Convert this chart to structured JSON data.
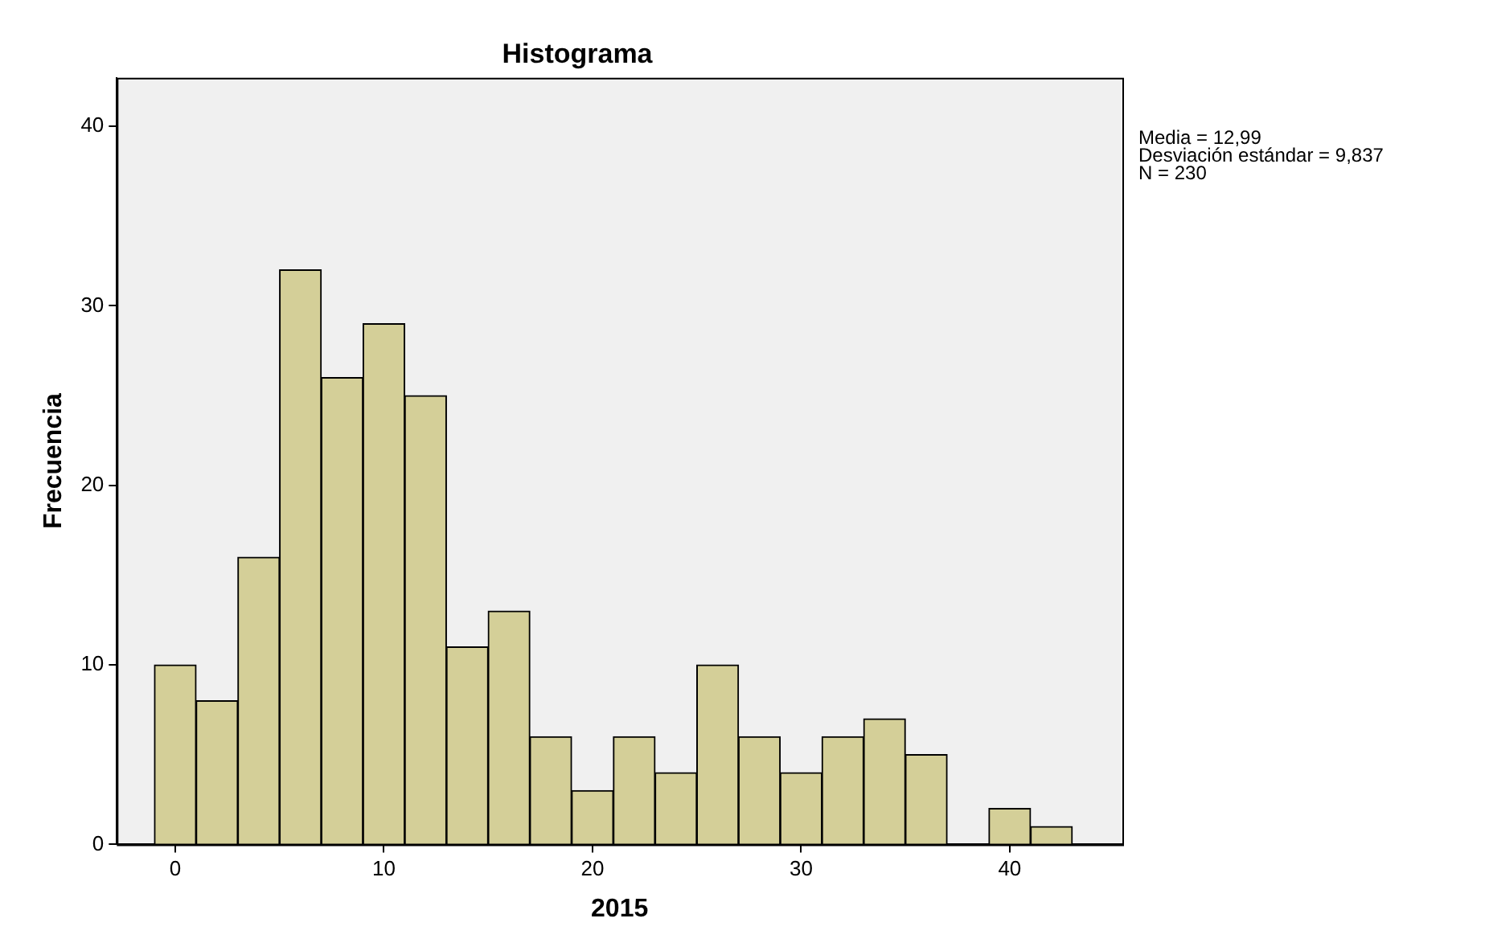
{
  "chart_data": {
    "type": "histogram",
    "title": "Histograma",
    "xlabel": "2015",
    "ylabel": "Frecuencia",
    "bins": [
      -1,
      1,
      3,
      5,
      7,
      9,
      11,
      13,
      15,
      17,
      19,
      21,
      23,
      25,
      27,
      29,
      31,
      33,
      35,
      37,
      39,
      41,
      43
    ],
    "values": [
      10,
      8,
      16,
      32,
      26,
      29,
      25,
      11,
      13,
      6,
      3,
      6,
      4,
      10,
      6,
      4,
      6,
      7,
      5,
      0,
      2,
      1
    ],
    "color": "#d4cf98",
    "xlim": [
      -2.8,
      45.4
    ],
    "xticks": [
      0,
      10,
      20,
      30,
      40
    ],
    "ylim": [
      0,
      42.7
    ],
    "yticks": [
      0,
      10,
      20,
      30,
      40
    ],
    "grid": false,
    "legend": false,
    "annotations": [
      "Media = 12,99",
      "Desviación estándar = 9,837",
      "N = 230"
    ]
  }
}
